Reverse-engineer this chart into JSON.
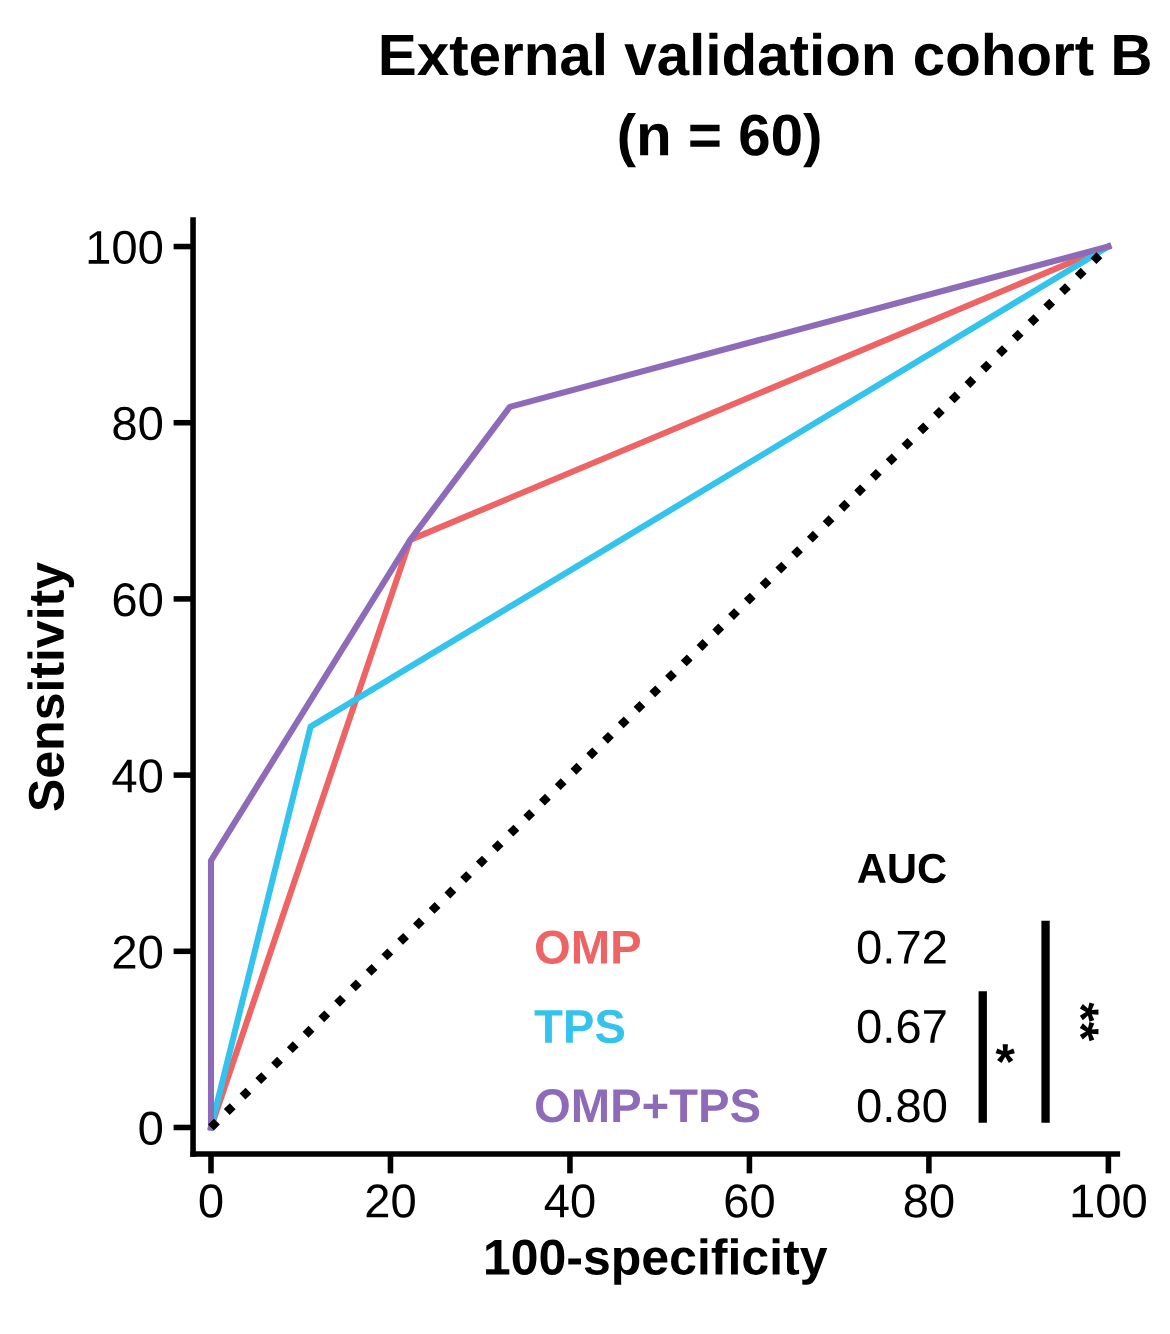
{
  "chart_data": {
    "type": "line",
    "title": "External validation cohort B",
    "subtitle": "(n = 60)",
    "xlabel": "100-specificity",
    "ylabel": "Sensitivity",
    "xlim": [
      -2,
      101
    ],
    "ylim": [
      -3,
      103
    ],
    "xticks": [
      0,
      20,
      40,
      60,
      80,
      100
    ],
    "yticks": [
      0,
      20,
      40,
      60,
      80,
      100
    ],
    "series": [
      {
        "name": "OMP",
        "color": "#ee6363",
        "x": [
          0,
          22.2,
          100
        ],
        "values": [
          0,
          66.7,
          100
        ]
      },
      {
        "name": "TPS",
        "color": "#33c3ec",
        "x": [
          0,
          11.1,
          100
        ],
        "values": [
          0,
          45.5,
          100
        ]
      },
      {
        "name": "OMP+TPS",
        "color": "#8e6bb8",
        "x": [
          0,
          0,
          22.2,
          33.3,
          100
        ],
        "values": [
          0,
          30.3,
          66.7,
          81.8,
          100
        ]
      },
      {
        "color": "#000000",
        "line_style": "dotted",
        "x": [
          0,
          100
        ],
        "values": [
          0,
          100
        ]
      }
    ],
    "annotations": [
      "AUC",
      "0.72",
      "0.67",
      "0.80",
      "*",
      "**"
    ],
    "grid": false,
    "legend": "bottom right",
    "marker": "none",
    "line_style": "solid"
  }
}
